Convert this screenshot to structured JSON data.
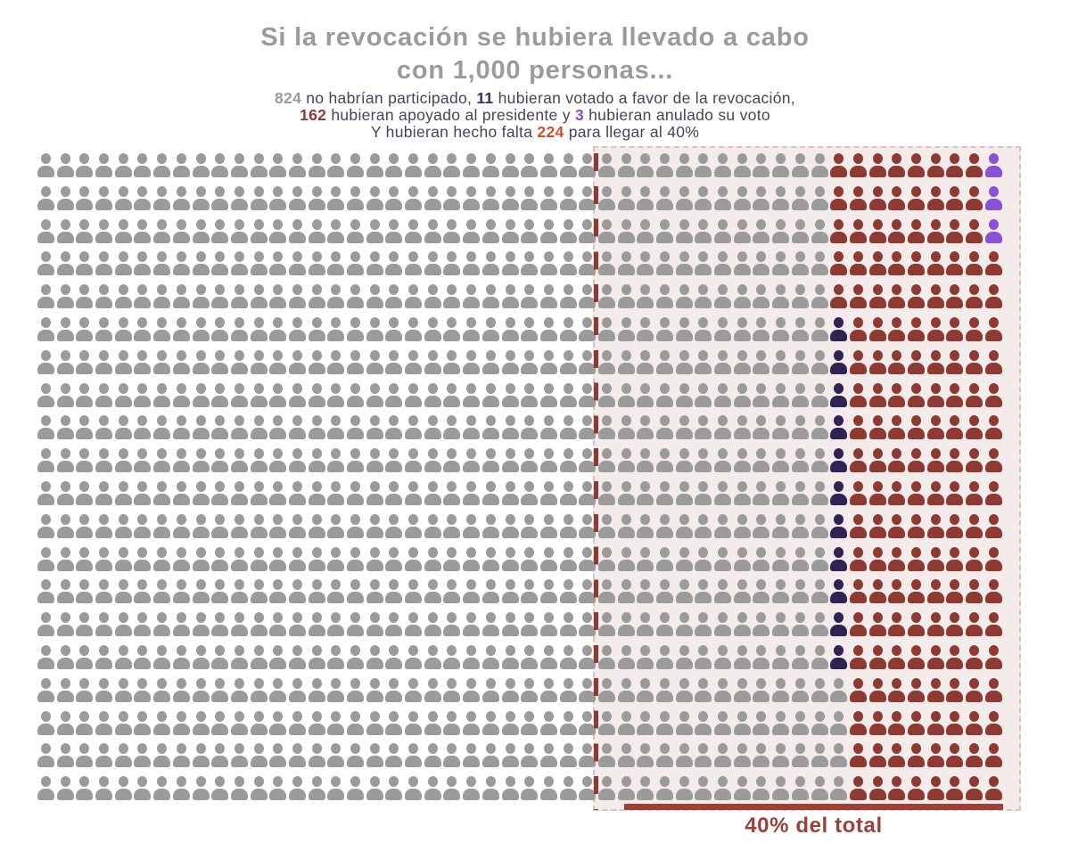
{
  "header": {
    "title_line1": "Si la revocación se hubiera llevado a cabo",
    "title_line2": "con 1,000 personas...",
    "subtitle_lines": [
      [
        {
          "text": "824",
          "style": "gray"
        },
        {
          "text": " no habrían participado, ",
          "style": "body"
        },
        {
          "text": "11",
          "style": "navy"
        },
        {
          "text": " hubieran votado a favor de la revocación,",
          "style": "body"
        }
      ],
      [
        {
          "text": "162",
          "style": "red"
        },
        {
          "text": " hubieran apoyado al presidente y ",
          "style": "body"
        },
        {
          "text": "3",
          "style": "purple"
        },
        {
          "text": " hubieran anulado su voto",
          "style": "body"
        }
      ],
      [
        {
          "text": "Y hubieran hecho falta ",
          "style": "body"
        },
        {
          "text": "224",
          "style": "orange"
        },
        {
          "text": " para llegar al 40%",
          "style": "body"
        }
      ]
    ]
  },
  "colors": {
    "title": "#9b9b9b",
    "body_text": "#4a4258",
    "gray": "#9b9b9b",
    "red": "#8e3a33",
    "navy": "#2f2254",
    "purple": "#8a50d6",
    "navy_text": "#3d2c66",
    "purple_text": "#7c4fd0",
    "orange": "#d14b2e",
    "threshold": "#9c4038",
    "region_bg": "rgba(203,162,162,0.22)",
    "region_border": "rgba(193,155,155,0.50)"
  },
  "chart_data": {
    "type": "pictogram",
    "title": "Si la revocación se hubiera llevado a cabo con 1,000 personas...",
    "total_units": 1000,
    "unit": "personas",
    "categories": [
      "No habrían participado",
      "Hubieran votado a favor de la revocación",
      "Hubieran apoyado al presidente",
      "Hubieran anulado su voto"
    ],
    "values": [
      824,
      11,
      162,
      3
    ],
    "colors": [
      "#9b9b9b",
      "#2f2254",
      "#8e3a33",
      "#8a50d6"
    ],
    "legend_position": "none",
    "grid": {
      "rows": 20,
      "cols": 50,
      "row_patterns": [
        {
          "from_row": 1,
          "to_row": 3,
          "segments": [
            [
              "gray",
              41
            ],
            [
              "red",
              8
            ],
            [
              "purple",
              1
            ]
          ]
        },
        {
          "from_row": 4,
          "to_row": 5,
          "segments": [
            [
              "gray",
              41
            ],
            [
              "red",
              9
            ]
          ]
        },
        {
          "from_row": 6,
          "to_row": 16,
          "segments": [
            [
              "gray",
              41
            ],
            [
              "navy",
              1
            ],
            [
              "red",
              8
            ]
          ]
        },
        {
          "from_row": 17,
          "to_row": 20,
          "segments": [
            [
              "gray",
              42
            ],
            [
              "red",
              8
            ]
          ]
        }
      ]
    },
    "annotation": {
      "label": "40% del total",
      "threshold_value": 400,
      "missing_for_threshold": 224
    }
  },
  "footer": {
    "threshold_label": "40% del total"
  }
}
